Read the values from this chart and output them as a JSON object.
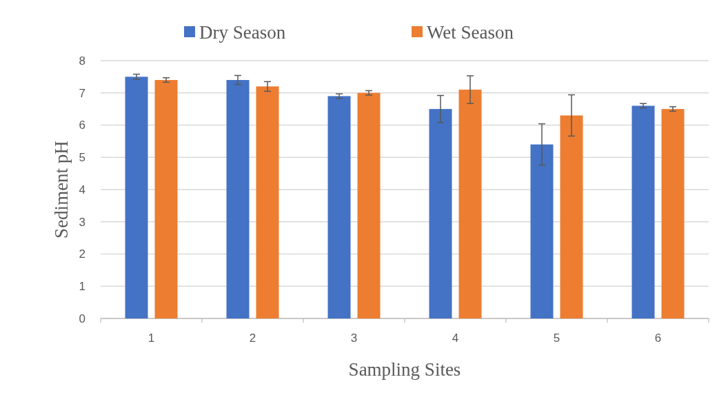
{
  "chart_data": {
    "type": "bar",
    "xlabel": "Sampling Sites",
    "ylabel": "Sediment pH",
    "categories": [
      "1",
      "2",
      "3",
      "4",
      "5",
      "6"
    ],
    "series": [
      {
        "name": "Dry Season",
        "color": "#4472c4",
        "values": [
          7.5,
          7.4,
          6.9,
          6.5,
          5.4,
          6.6
        ],
        "errors": [
          0.08,
          0.14,
          0.07,
          0.42,
          0.64,
          0.07
        ]
      },
      {
        "name": "Wet Season",
        "color": "#ed7d31",
        "values": [
          7.4,
          7.2,
          7.0,
          7.1,
          6.3,
          6.5
        ],
        "errors": [
          0.07,
          0.15,
          0.07,
          0.43,
          0.64,
          0.07
        ]
      }
    ],
    "ylim": [
      0,
      8
    ],
    "yticks": [
      0,
      1,
      2,
      3,
      4,
      5,
      6,
      7,
      8
    ],
    "grid": "y",
    "legend": "top"
  }
}
